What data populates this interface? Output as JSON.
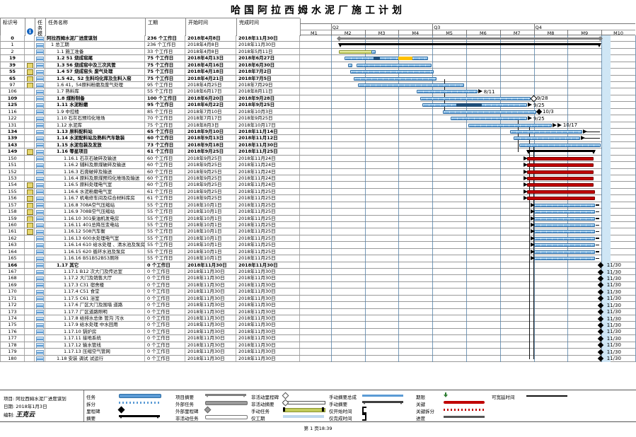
{
  "title": "哈国阿拉西姆水泥厂施工计划",
  "table": {
    "headers": {
      "id": "标识号",
      "mode1": "任务",
      "mode2": "模式",
      "name": "任务名称",
      "duration": "工期",
      "start": "开始时间",
      "finish": "完成时间"
    },
    "info_icon": "i"
  },
  "timescale": {
    "quarters": [
      "Q2",
      "Q3",
      "Q4"
    ],
    "months": [
      "M1",
      "M2",
      "M3",
      "M4",
      "M5",
      "M6",
      "M7",
      "M8",
      "M9",
      "M10"
    ]
  },
  "rows": [
    {
      "id": "0",
      "lvl": 0,
      "bold": true,
      "name": "阿拉西姆水泥厂进度谋划",
      "dur": "236 个工作日",
      "start": "2018年4月8日",
      "end": "2018年11月30日",
      "bar": {
        "t": "project",
        "f": 1.23,
        "to": 8.97
      }
    },
    {
      "id": "1",
      "lvl": 1,
      "name": "1 总工期",
      "dur": "236 个工作日",
      "start": "2018年4月8日",
      "end": "2018年11月30日",
      "bar": {
        "t": "summary",
        "f": 1.23,
        "to": 8.97
      }
    },
    {
      "id": "2",
      "lvl": 2,
      "name": "1.1 施工准备",
      "dur": "33 个工作日",
      "start": "2018年4月8日",
      "end": "2018年5月11日",
      "bar": {
        "t": "manual",
        "f": 1.23,
        "to": 2.33
      }
    },
    {
      "id": "19",
      "lvl": 2,
      "bold": true,
      "name": "1.2 51 烧成窑尾",
      "dur": "75 个工作日",
      "start": "2018年4月13日",
      "end": "2018年6月27日",
      "bar": {
        "t": "task",
        "f": 1.4,
        "to": 3.87,
        "segs": [
          [
            2.25,
            2.45,
            "#1F4E79"
          ],
          [
            3.0,
            3.42,
            "#FFC000"
          ]
        ]
      }
    },
    {
      "id": "39",
      "note": true,
      "lvl": 2,
      "bold": true,
      "name": "1.3 56 烧成窑中及三次风管",
      "dur": "75 个工作日",
      "start": "2018年4月16日",
      "end": "2018年6月30日",
      "bar": {
        "t": "task",
        "f": 1.76,
        "to": 3.97,
        "pre": [
          1.5,
          1.64
        ]
      }
    },
    {
      "id": "55",
      "note": true,
      "lvl": 2,
      "bold": true,
      "name": "1.4 57 烧成窑头 废气处理",
      "dur": "75 个工作日",
      "start": "2018年4月18日",
      "end": "2018年7月2日",
      "bar": {
        "t": "task",
        "f": 1.57,
        "to": 4.03
      }
    },
    {
      "id": "65",
      "note": true,
      "lvl": 2,
      "bold": true,
      "name": "1.5 42、52 生料均化库及生料入窑",
      "dur": "75 个工作日",
      "start": "2018年4月21日",
      "end": "2018年7月5日",
      "bar": {
        "t": "task",
        "f": 1.67,
        "to": 4.13
      }
    },
    {
      "id": "97",
      "note": true,
      "lvl": 2,
      "name": "1.6 41，54原料粉磨及废气处理",
      "dur": "95 个工作日",
      "start": "2018年4月25日",
      "end": "2018年7月29日",
      "bar": {
        "t": "task",
        "f": 1.8,
        "to": 4.93
      }
    },
    {
      "id": "106",
      "lvl": 2,
      "name": "1.7 熟料库",
      "dur": "55 个工作日",
      "start": "2018年6月17日",
      "end": "2018年8月11日",
      "bar": {
        "t": "task",
        "f": 3.53,
        "to": 5.33,
        "mark": "arrow",
        "lbl": "8/11"
      }
    },
    {
      "id": "109",
      "lvl": 2,
      "bold": true,
      "name": "1.8 煤粉制备",
      "dur": "100 个工作日",
      "start": "2018年6月20日",
      "end": "2018年9月28日",
      "bar": {
        "t": "task",
        "f": 3.63,
        "to": 6.9,
        "mark": "wdia",
        "lbl": "9/28"
      }
    },
    {
      "id": "125",
      "lvl": 2,
      "bold": true,
      "name": "1.11 水泥粉磨",
      "dur": "95 个工作日",
      "start": "2018年6月22日",
      "end": "2018年9月25日",
      "bar": {
        "t": "task",
        "f": 3.7,
        "to": 6.8,
        "segs": [
          [
            4.7,
            5.45,
            "#1F4E79"
          ]
        ],
        "mark": "arrow",
        "lbl": "9/25"
      }
    },
    {
      "id": "116",
      "lvl": 2,
      "name": "1.9 中控楼",
      "dur": "85 个工作日",
      "start": "2018年7月10日",
      "end": "2018年10月3日",
      "bar": {
        "t": "task",
        "f": 4.3,
        "to": 7.07,
        "mark": "bdia",
        "lbl": "10/3"
      }
    },
    {
      "id": "122",
      "lvl": 2,
      "name": "1.10 石灰石预均化堆场",
      "dur": "70 个工作日",
      "start": "2018年7月17日",
      "end": "2018年9月25日",
      "bar": {
        "t": "task",
        "f": 4.53,
        "to": 6.8,
        "mark": "arrow",
        "lbl": "9/25"
      }
    },
    {
      "id": "131",
      "lvl": 2,
      "name": "1.12 水泥库",
      "dur": "75 个工作日",
      "start": "2018年8月3日",
      "end": "2018年10月17日",
      "bar": {
        "t": "task",
        "f": 5.07,
        "to": 7.53,
        "mark": "arrow2",
        "lbl": "10/17"
      }
    },
    {
      "id": "134",
      "lvl": 2,
      "bold": true,
      "name": "1.13 原料配料站",
      "dur": "65 个工作日",
      "start": "2018年9月10日",
      "end": "2018年11月14日",
      "bar": {
        "t": "task",
        "f": 6.3,
        "to": 8.43,
        "mark": "arrow",
        "slack": [
          8.55,
          8.95
        ]
      }
    },
    {
      "id": "139",
      "lvl": 2,
      "bold": true,
      "name": "1.14 水泥配料站及熟料汽车散装",
      "dur": "60 个工作日",
      "start": "2018年9月13日",
      "end": "2018年11月12日",
      "bar": {
        "t": "task",
        "f": 6.4,
        "to": 8.37,
        "mark": "arrow",
        "slack": [
          8.5,
          8.95
        ]
      }
    },
    {
      "id": "143",
      "lvl": 2,
      "bold": true,
      "name": "1.15 水泥包装及发放",
      "dur": "73 个工作日",
      "start": "2018年9月18日",
      "end": "2018年11月30日",
      "bar": {
        "t": "task",
        "f": 6.57,
        "to": 8.97
      }
    },
    {
      "id": "149",
      "note": true,
      "lvl": 2,
      "bold": true,
      "name": "1.16 零星项目",
      "dur": "61 个工作日",
      "start": "2018年9月25日",
      "end": "2018年11月25日",
      "bar": {
        "t": "summary",
        "f": 6.8,
        "to": 8.8
      }
    },
    {
      "id": "150",
      "lvl": 3,
      "name": "1.16.1 石灰石破碎及输送",
      "dur": "60 个工作日",
      "start": "2018年9月25日",
      "end": "2018年11月24日",
      "bar": {
        "t": "red",
        "f": 6.8,
        "to": 8.77,
        "lmark": true
      }
    },
    {
      "id": "151",
      "lvl": 3,
      "name": "1.16.2 辅料及原煤破碎及输送",
      "dur": "60 个工作日",
      "start": "2018年9月25日",
      "end": "2018年11月24日",
      "bar": {
        "t": "red",
        "f": 6.8,
        "to": 8.77,
        "lmark": true
      }
    },
    {
      "id": "152",
      "lvl": 3,
      "name": "1.16.3 石膏破碎及输送",
      "dur": "60 个工作日",
      "start": "2018年9月25日",
      "end": "2018年11月24日",
      "bar": {
        "t": "red",
        "f": 6.8,
        "to": 8.77,
        "lmark": true
      }
    },
    {
      "id": "153",
      "lvl": 3,
      "name": "1.16.4 原料及原煤预均化堆场及输送",
      "dur": "60 个工作日",
      "start": "2018年9月25日",
      "end": "2018年11月24日",
      "bar": {
        "t": "red",
        "f": 6.8,
        "to": 8.77,
        "lmark": true
      }
    },
    {
      "id": "154",
      "note": true,
      "lvl": 3,
      "name": "1.16.5 原料处理电气室",
      "dur": "60 个工作日",
      "start": "2018年9月25日",
      "end": "2018年11月24日",
      "bar": {
        "t": "red",
        "f": 6.8,
        "to": 8.77,
        "lmark": true
      }
    },
    {
      "id": "155",
      "note": true,
      "lvl": 3,
      "name": "1.16.6 水泥粉磨电气室",
      "dur": "61 个工作日",
      "start": "2018年9月25日",
      "end": "2018年11月25日",
      "bar": {
        "t": "red",
        "f": 6.8,
        "to": 8.8,
        "lmark": true
      }
    },
    {
      "id": "156",
      "note": true,
      "lvl": 3,
      "name": "1.16.7 机电修车间及综合材料库房",
      "dur": "61 个工作日",
      "start": "2018年9月25日",
      "end": "2018年11月25日",
      "bar": {
        "t": "red",
        "f": 6.8,
        "to": 8.8,
        "lmark": true
      }
    },
    {
      "id": "157",
      "note": true,
      "lvl": 3,
      "name": "1.16.8 708A空气压缩站",
      "dur": "55 个工作日",
      "start": "2018年10月1日",
      "end": "2018年11月25日",
      "bar": {
        "t": "task",
        "f": 7.0,
        "to": 8.8,
        "lmark": true,
        "slack": [
          8.82,
          8.93
        ]
      }
    },
    {
      "id": "158",
      "note": true,
      "lvl": 3,
      "name": "1.16.9 708B空气压缩站",
      "dur": "55 个工作日",
      "start": "2018年10月1日",
      "end": "2018年11月25日",
      "bar": {
        "t": "task",
        "f": 7.0,
        "to": 8.8,
        "lmark": true,
        "slack": [
          8.82,
          8.93
        ]
      }
    },
    {
      "id": "159",
      "note": true,
      "lvl": 3,
      "name": "1.16.10 301柴油机发电房",
      "dur": "55 个工作日",
      "start": "2018年10月1日",
      "end": "2018年11月25日",
      "bar": {
        "t": "task",
        "f": 7.0,
        "to": 8.8,
        "lmark": true,
        "slack": [
          8.82,
          8.93
        ]
      }
    },
    {
      "id": "160",
      "note": true,
      "lvl": 3,
      "name": "1.16.11 401总降压变电站",
      "dur": "55 个工作日",
      "start": "2018年10月1日",
      "end": "2018年11月25日",
      "bar": {
        "t": "task",
        "f": 7.0,
        "to": 8.8,
        "lmark": true,
        "slack": [
          8.82,
          8.93
        ]
      }
    },
    {
      "id": "161",
      "note": true,
      "lvl": 3,
      "name": "1.16.12 508汽车衡",
      "dur": "55 个工作日",
      "start": "2018年10月1日",
      "end": "2018年11月25日",
      "bar": {
        "t": "task",
        "f": 7.0,
        "to": 8.8,
        "lmark": true,
        "slack": [
          8.82,
          8.93
        ]
      }
    },
    {
      "id": "162",
      "lvl": 3,
      "name": "1.16.13 600水处理电气室",
      "dur": "55 个工作日",
      "start": "2018年10月1日",
      "end": "2018年11月25日",
      "bar": {
        "t": "task",
        "f": 7.0,
        "to": 8.8,
        "lmark": true,
        "slack": [
          8.82,
          8.93
        ]
      }
    },
    {
      "id": "163",
      "lvl": 3,
      "name": "1.16.14 610 给水处理 、清水池及泵房",
      "dur": "55 个工作日",
      "start": "2018年10月1日",
      "end": "2018年11月25日",
      "bar": {
        "t": "task",
        "f": 7.0,
        "to": 8.8,
        "lmark": true,
        "slack": [
          8.82,
          8.93
        ]
      }
    },
    {
      "id": "164",
      "lvl": 3,
      "name": "1.16.15 620 循环水池及泵房",
      "dur": "55 个工作日",
      "start": "2018年10月1日",
      "end": "2018年11月25日",
      "bar": {
        "t": "task",
        "f": 7.0,
        "to": 8.8,
        "lmark": true,
        "slack": [
          8.82,
          8.93
        ]
      }
    },
    {
      "id": "165",
      "lvl": 3,
      "name": "1.16.16 B51B52B53厕所",
      "dur": "55 个工作日",
      "start": "2018年10月1日",
      "end": "2018年11月25日",
      "bar": {
        "t": "task",
        "f": 7.0,
        "to": 8.8,
        "lmark": true,
        "slack": [
          8.82,
          8.93
        ]
      }
    },
    {
      "id": "166",
      "lvl": 2,
      "bold": true,
      "name": "1.17 其它",
      "dur": "0 个工作日",
      "start": "2018年11月30日",
      "end": "2018年11月30日",
      "bar": {
        "t": "ms",
        "f": 8.97,
        "lbl": "11/30"
      }
    },
    {
      "id": "167",
      "lvl": 3,
      "name": "1.17.1 B12 次大门及传达室",
      "dur": "0 个工作日",
      "start": "2018年11月30日",
      "end": "2018年11月30日",
      "bar": {
        "t": "ms",
        "f": 8.97,
        "lbl": "11/30"
      }
    },
    {
      "id": "168",
      "lvl": 3,
      "name": "1.17.2 大门及销售大厅",
      "dur": "0 个工作日",
      "start": "2018年11月30日",
      "end": "2018年11月30日",
      "bar": {
        "t": "ms",
        "f": 8.97,
        "lbl": "11/30"
      }
    },
    {
      "id": "169",
      "lvl": 3,
      "name": "1.17.3 C31 宿舍楼",
      "dur": "0 个工作日",
      "start": "2018年11月30日",
      "end": "2018年11月30日",
      "bar": {
        "t": "ms",
        "f": 8.97,
        "lbl": "11/30"
      }
    },
    {
      "id": "170",
      "lvl": 3,
      "name": "1.17.4 C51 食堂",
      "dur": "0 个工作日",
      "start": "2018年11月30日",
      "end": "2018年11月30日",
      "bar": {
        "t": "ms",
        "f": 8.97,
        "lbl": "11/30"
      }
    },
    {
      "id": "171",
      "lvl": 3,
      "name": "1.17.5 C61 浴室",
      "dur": "0 个工作日",
      "start": "2018年11月30日",
      "end": "2018年11月30日",
      "bar": {
        "t": "ms",
        "f": 8.97,
        "lbl": "11/30"
      }
    },
    {
      "id": "172",
      "lvl": 3,
      "name": "1.17.6 厂区大门及围墙 道路",
      "dur": "0 个工作日",
      "start": "2018年11月30日",
      "end": "2018年11月30日",
      "bar": {
        "t": "ms",
        "f": 8.97,
        "lbl": "11/30"
      }
    },
    {
      "id": "173",
      "lvl": 3,
      "name": "1.17.7 厂区道路照明",
      "dur": "0 个工作日",
      "start": "2018年11月30日",
      "end": "2018年11月30日",
      "bar": {
        "t": "ms",
        "f": 8.97,
        "lbl": "11/30"
      }
    },
    {
      "id": "174",
      "lvl": 3,
      "name": "1.17.8 给排水总体 管沟 污水",
      "dur": "0 个工作日",
      "start": "2018年11月30日",
      "end": "2018年11月30日",
      "bar": {
        "t": "ms",
        "f": 8.97,
        "lbl": "11/30"
      }
    },
    {
      "id": "175",
      "lvl": 3,
      "name": "1.17.9 给水处理   中水回用",
      "dur": "0 个工作日",
      "start": "2018年11月30日",
      "end": "2018年11月30日",
      "bar": {
        "t": "ms",
        "f": 8.97,
        "lbl": "11/30"
      }
    },
    {
      "id": "176",
      "lvl": 3,
      "name": "1.17.10 锅炉房",
      "dur": "0 个工作日",
      "start": "2018年11月30日",
      "end": "2018年11月30日",
      "bar": {
        "t": "ms",
        "f": 8.97,
        "lbl": "11/30"
      }
    },
    {
      "id": "177",
      "lvl": 3,
      "name": "1.17.11 接地系统",
      "dur": "0 个工作日",
      "start": "2018年11月30日",
      "end": "2018年11月30日",
      "bar": {
        "t": "ms",
        "f": 8.97,
        "lbl": "11/30"
      }
    },
    {
      "id": "178",
      "lvl": 3,
      "name": "1.17.12 输水管线",
      "dur": "0 个工作日",
      "start": "2018年11月30日",
      "end": "2018年11月30日",
      "bar": {
        "t": "ms",
        "f": 8.97,
        "lbl": "11/30"
      }
    },
    {
      "id": "179",
      "lvl": 3,
      "name": "1.17.13 压缩空气管网",
      "dur": "0 个工作日",
      "start": "2018年11月30日",
      "end": "2018年11月30日",
      "bar": {
        "t": "ms",
        "f": 8.97,
        "lbl": "11/30"
      }
    },
    {
      "id": "180",
      "lvl": 2,
      "name": "1.18 安装 调试 试运行",
      "dur": "0 个工作日",
      "start": "2018年11月30日",
      "end": "2018年11月30日",
      "bar": {
        "t": "ms",
        "f": 8.97,
        "lbl": "11/30"
      }
    }
  ],
  "gantt_links": [
    {
      "m": 4.35,
      "a": 6,
      "b": 11
    },
    {
      "m": 6.52,
      "a": 12,
      "b": 17
    },
    {
      "m": 6.86,
      "a": 13,
      "b": 48
    },
    {
      "m": 6.98,
      "a": 16,
      "b": 48
    }
  ],
  "legend": {
    "info": {
      "project": "项目: 阿拉西姆水泥厂进度谋划",
      "date": "日期: 2018年1月3日",
      "author_label": "编制:",
      "author": "王克云"
    },
    "columns": [
      [
        {
          "label": "任务",
          "type": "task"
        },
        {
          "label": "拆分",
          "type": "split"
        },
        {
          "label": "里程碑",
          "type": "milestone"
        },
        {
          "label": "摘要",
          "type": "summary"
        }
      ],
      [
        {
          "label": "项目摘要",
          "type": "project"
        },
        {
          "label": "外部任务",
          "type": "external"
        },
        {
          "label": "外部里程碑",
          "type": "ext-milestone"
        },
        {
          "label": "非活动任务",
          "type": "inactive"
        }
      ],
      [
        {
          "label": "非活动里程碑",
          "type": "inactive-milestone"
        },
        {
          "label": "非活动摘要",
          "type": "inactive-summary"
        },
        {
          "label": "手动任务",
          "type": "manual"
        },
        {
          "label": "仅工期",
          "type": "duration-only"
        }
      ],
      [
        {
          "label": "手动摘要总成",
          "type": "manual-rollup"
        },
        {
          "label": "手动摘要",
          "type": "manual-summary"
        },
        {
          "label": "仅开始时间",
          "type": "start-only"
        },
        {
          "label": "仅完成时间",
          "type": "finish-only"
        }
      ],
      [
        {
          "label": "期限",
          "type": "deadline"
        },
        {
          "label": "关键",
          "type": "critical"
        },
        {
          "label": "关键拆分",
          "type": "critical-split"
        },
        {
          "label": "进度",
          "type": "progress"
        }
      ],
      [
        {
          "label": "可宽延时间",
          "type": "slack"
        }
      ]
    ]
  },
  "footer": {
    "page": "第 1 页18:39"
  },
  "colors": {
    "task": "#5b9bd5",
    "critical": "#c00000",
    "manual": "#c2cc5c",
    "orange": "#FFC000",
    "progress_overlay": "#1F4E79",
    "summary": "#000000",
    "project_summary": "#7f7f7f",
    "duration_only": "#bdd7ee",
    "deadline_green": "#2e7d32",
    "band": "#cfe6f5"
  }
}
